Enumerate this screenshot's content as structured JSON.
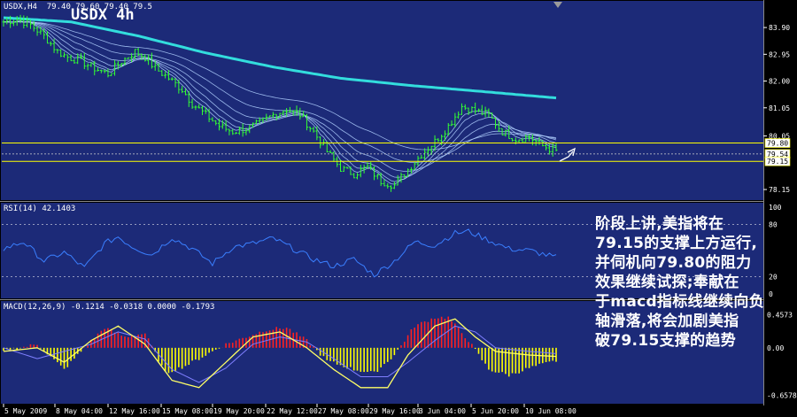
{
  "chart_data": [
    {
      "type": "line",
      "panel": "main",
      "symbol": "USDX",
      "timeframe": "4h",
      "header": "USDX,H4  79.40 79.60 79.40 79.5",
      "title": "USDX 4h",
      "ylim": [
        77.9,
        84.5
      ],
      "price_ticks": [
        "83.90",
        "82.95",
        "82.00",
        "81.05",
        "80.05",
        "78.15"
      ],
      "price_tick_values": [
        83.9,
        82.95,
        82.0,
        81.05,
        80.05,
        78.15
      ],
      "horizontal_lines": [
        {
          "value": 79.8,
          "label": "79.80",
          "color": "#ffff00"
        },
        {
          "value": 79.15,
          "label": "79.15",
          "color": "#ffff00"
        }
      ],
      "current_price_label": "79.54",
      "x_labels": [
        "5 May 2009",
        "8 May 04:00",
        "12 May 16:00",
        "15 May 08:00",
        "19 May 20:00",
        "22 May 12:00",
        "27 May 08:00",
        "29 May 16:00",
        "3 Jun 04:00",
        "5 Jun 20:00",
        "10 Jun 08:00"
      ],
      "price_anchors": [
        [
          0,
          84.1
        ],
        [
          4,
          84.2
        ],
        [
          8,
          84.0
        ],
        [
          12,
          83.6
        ],
        [
          16,
          83.05
        ],
        [
          19,
          82.85
        ],
        [
          23,
          82.7
        ],
        [
          27,
          82.45
        ],
        [
          31,
          82.25
        ],
        [
          35,
          82.7
        ],
        [
          39,
          83.05
        ],
        [
          42,
          82.85
        ],
        [
          45,
          82.45
        ],
        [
          49,
          82.1
        ],
        [
          53,
          81.7
        ],
        [
          56,
          81.2
        ],
        [
          60,
          80.8
        ],
        [
          64,
          80.4
        ],
        [
          68,
          80.2
        ],
        [
          72,
          80.3
        ],
        [
          76,
          80.5
        ],
        [
          80,
          80.8
        ],
        [
          84,
          81.0
        ],
        [
          88,
          80.8
        ],
        [
          92,
          80.2
        ],
        [
          96,
          79.5
        ],
        [
          100,
          78.9
        ],
        [
          104,
          78.7
        ],
        [
          108,
          78.95
        ],
        [
          112,
          78.45
        ],
        [
          116,
          78.3
        ],
        [
          120,
          78.85
        ],
        [
          124,
          79.4
        ],
        [
          128,
          79.85
        ],
        [
          132,
          80.4
        ],
        [
          136,
          81.1
        ],
        [
          140,
          80.95
        ],
        [
          144,
          80.8
        ],
        [
          148,
          80.2
        ],
        [
          152,
          79.95
        ],
        [
          156,
          80.0
        ],
        [
          160,
          79.7
        ],
        [
          164,
          79.5
        ]
      ],
      "total_bars": 164
    },
    {
      "type": "line",
      "panel": "rsi",
      "header": "RSI(14) 42.1403",
      "ylim": [
        0,
        100
      ],
      "levels": [
        80,
        20
      ],
      "tick_labels": [
        "100",
        "80",
        "20",
        "0"
      ],
      "tick_values": [
        100,
        80,
        20,
        0
      ],
      "value": 42.1403,
      "anchors": [
        [
          0,
          52
        ],
        [
          6,
          60
        ],
        [
          12,
          38
        ],
        [
          18,
          48
        ],
        [
          24,
          30
        ],
        [
          30,
          58
        ],
        [
          34,
          66
        ],
        [
          38,
          55
        ],
        [
          44,
          45
        ],
        [
          50,
          65
        ],
        [
          56,
          52
        ],
        [
          62,
          35
        ],
        [
          68,
          54
        ],
        [
          74,
          58
        ],
        [
          80,
          64
        ],
        [
          86,
          52
        ],
        [
          92,
          40
        ],
        [
          98,
          32
        ],
        [
          104,
          40
        ],
        [
          110,
          22
        ],
        [
          116,
          38
        ],
        [
          122,
          60
        ],
        [
          128,
          56
        ],
        [
          134,
          70
        ],
        [
          138,
          72
        ],
        [
          144,
          62
        ],
        [
          150,
          52
        ],
        [
          156,
          50
        ],
        [
          164,
          42
        ]
      ]
    },
    {
      "type": "bar",
      "panel": "macd",
      "header": "MACD(12,26,9) -0.1214 -0.0318 0.0000 -0.1793",
      "ylim": [
        -0.7,
        0.5
      ],
      "tick_labels": [
        "0.4573",
        "0.00",
        "-0.6578"
      ],
      "tick_values": [
        0.4573,
        0.0,
        -0.6578
      ],
      "histogram_anchors": [
        [
          0,
          -0.05
        ],
        [
          10,
          0.05
        ],
        [
          18,
          -0.3
        ],
        [
          24,
          0.0
        ],
        [
          30,
          0.28
        ],
        [
          36,
          0.15
        ],
        [
          42,
          0.2
        ],
        [
          48,
          -0.35
        ],
        [
          54,
          -0.25
        ],
        [
          60,
          -0.1
        ],
        [
          66,
          0.05
        ],
        [
          72,
          0.15
        ],
        [
          78,
          0.25
        ],
        [
          84,
          0.28
        ],
        [
          90,
          0.1
        ],
        [
          96,
          -0.18
        ],
        [
          104,
          -0.3
        ],
        [
          110,
          -0.35
        ],
        [
          116,
          -0.1
        ],
        [
          122,
          0.3
        ],
        [
          128,
          0.42
        ],
        [
          132,
          0.42
        ],
        [
          138,
          0.1
        ],
        [
          144,
          -0.3
        ],
        [
          150,
          -0.38
        ],
        [
          156,
          -0.28
        ],
        [
          164,
          -0.18
        ]
      ],
      "signal_anchors": [
        [
          0,
          0.0
        ],
        [
          10,
          -0.15
        ],
        [
          18,
          -0.05
        ],
        [
          26,
          0.05
        ],
        [
          34,
          0.22
        ],
        [
          42,
          0.12
        ],
        [
          50,
          -0.3
        ],
        [
          58,
          -0.48
        ],
        [
          66,
          -0.28
        ],
        [
          74,
          0.05
        ],
        [
          82,
          0.15
        ],
        [
          90,
          0.08
        ],
        [
          98,
          -0.15
        ],
        [
          106,
          -0.4
        ],
        [
          114,
          -0.4
        ],
        [
          120,
          -0.2
        ],
        [
          128,
          0.1
        ],
        [
          134,
          0.3
        ],
        [
          140,
          0.22
        ],
        [
          146,
          0.0
        ],
        [
          156,
          -0.05
        ],
        [
          164,
          -0.08
        ]
      ],
      "macd_anchors": [
        [
          0,
          -0.05
        ],
        [
          10,
          0.0
        ],
        [
          18,
          -0.2
        ],
        [
          26,
          0.1
        ],
        [
          34,
          0.3
        ],
        [
          42,
          0.05
        ],
        [
          50,
          -0.45
        ],
        [
          58,
          -0.55
        ],
        [
          66,
          -0.2
        ],
        [
          74,
          0.15
        ],
        [
          82,
          0.22
        ],
        [
          90,
          0.0
        ],
        [
          98,
          -0.3
        ],
        [
          106,
          -0.55
        ],
        [
          114,
          -0.55
        ],
        [
          120,
          -0.1
        ],
        [
          128,
          0.3
        ],
        [
          134,
          0.4
        ],
        [
          140,
          0.15
        ],
        [
          146,
          -0.05
        ],
        [
          156,
          -0.1
        ],
        [
          164,
          -0.12
        ]
      ]
    }
  ],
  "comment_lines": [
    "阶段上讲,美指将在",
    "79.15的支撑上方运行,",
    "并伺机向79.80的阻力",
    "效果继续试探;奉献在",
    "于macd指标线继续向负",
    "轴滑落,将会加剧美指",
    "破79.15支撑的趋势"
  ],
  "colors": {
    "background": "#000000",
    "panel": "#1c2a78",
    "grid": "#ffffff",
    "text": "#ffffff",
    "price": "#33ff33",
    "ribbon": "#b0d0ff",
    "long_ma": "#33dddd",
    "level_line": "#ffff00",
    "rsi": "#3a7fff",
    "macd_pos": "#ff2020",
    "macd_neg": "#ffff00",
    "macd_line": "#ffff66",
    "signal": "#7f7fff"
  }
}
